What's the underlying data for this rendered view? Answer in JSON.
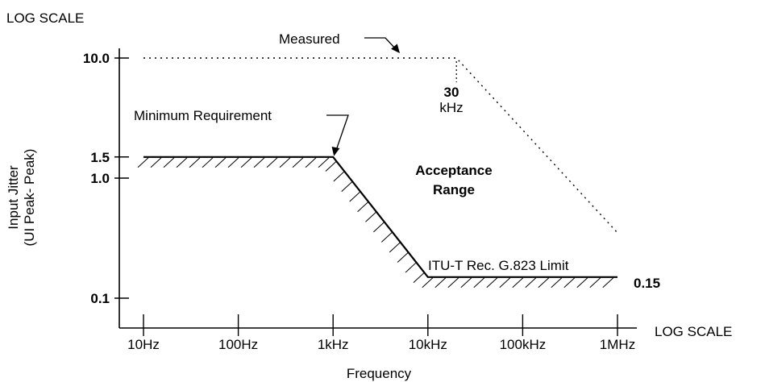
{
  "chart_data": {
    "type": "line",
    "x_scale": "log",
    "y_scale": "log",
    "x_scale_label": "LOG SCALE",
    "y_scale_label": "LOG SCALE",
    "xlabel": "Frequency",
    "ylabel_line1": "Input Jitter",
    "ylabel_line2": "(UI Peak- Peak)",
    "x_ticks": [
      {
        "value": 10,
        "label": "10Hz"
      },
      {
        "value": 100,
        "label": "100Hz"
      },
      {
        "value": 1000,
        "label": "1kHz"
      },
      {
        "value": 10000,
        "label": "10kHz"
      },
      {
        "value": 100000,
        "label": "100kHz"
      },
      {
        "value": 1000000,
        "label": "1MHz"
      }
    ],
    "y_ticks": [
      {
        "value": 0.1,
        "label": "0.1"
      },
      {
        "value": 1.0,
        "label": "1.0"
      },
      {
        "value": 1.5,
        "label": "1.5"
      },
      {
        "value": 10.0,
        "label": "10.0"
      }
    ],
    "xlim": [
      5,
      1500000
    ],
    "ylim": [
      0.075,
      11
    ],
    "series": [
      {
        "name": "Measured",
        "style": "dotted",
        "points": [
          [
            10,
            10.0
          ],
          [
            20000,
            10.0
          ],
          [
            1000000,
            0.35
          ]
        ]
      },
      {
        "name": "Minimum Requirement",
        "style": "solid-hatched",
        "points": [
          [
            10,
            1.5
          ],
          [
            1000,
            1.5
          ],
          [
            10000,
            0.15
          ],
          [
            1000000,
            0.15
          ]
        ]
      }
    ],
    "annotations": {
      "measured": "Measured",
      "minimum": "Minimum Requirement",
      "corner_value": "30",
      "corner_unit": "kHz",
      "acceptance_line1": "Acceptance",
      "acceptance_line2": "Range",
      "itu_limit": "ITU-T Rec. G.823 Limit",
      "end_value": "0.15"
    }
  }
}
